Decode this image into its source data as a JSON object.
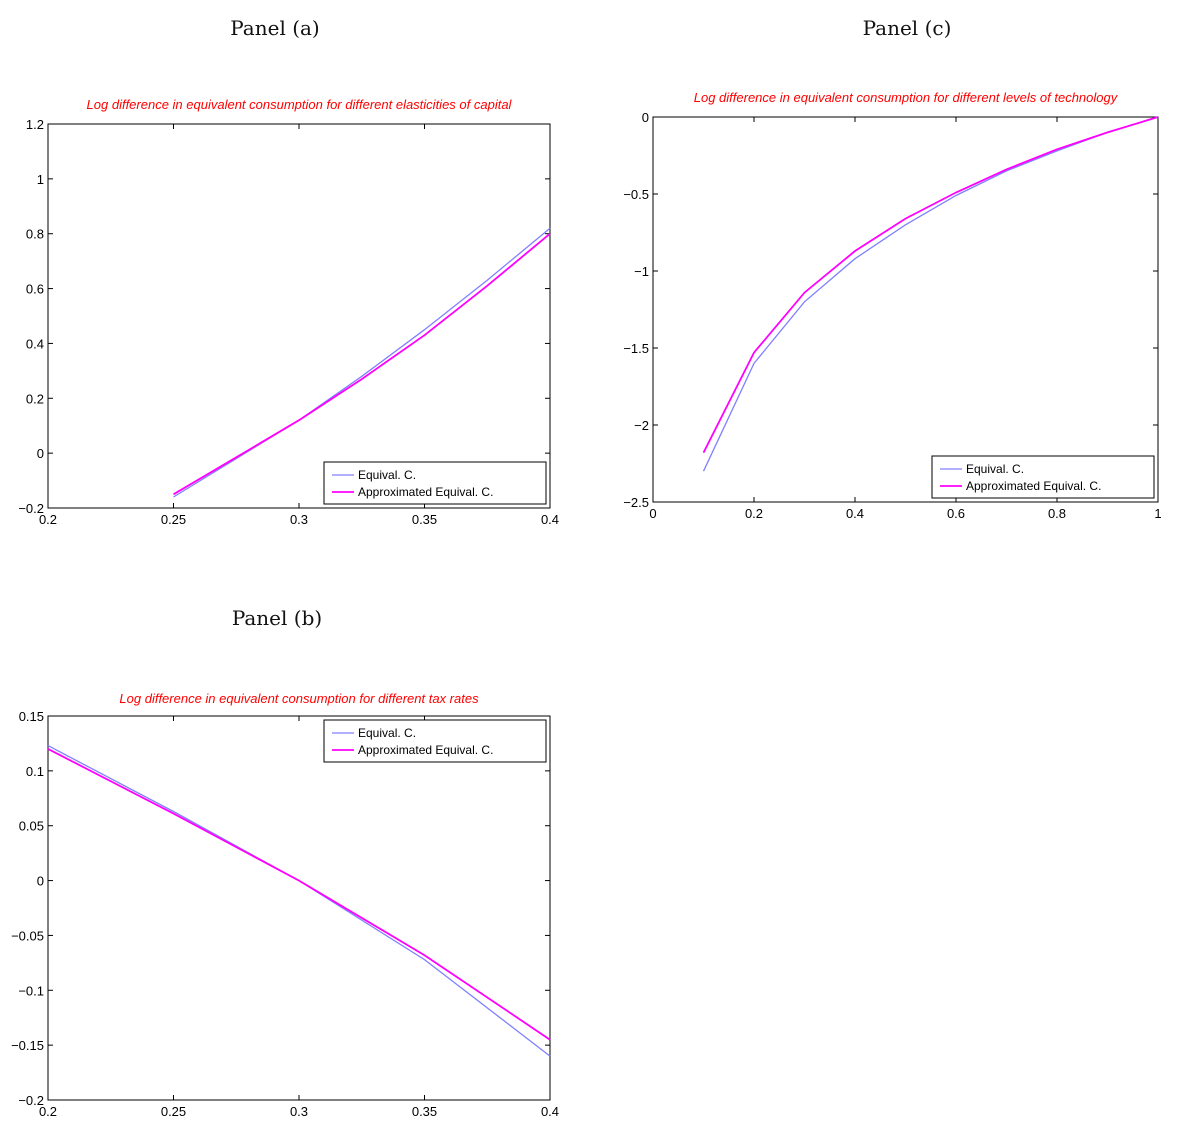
{
  "panels": {
    "a": "Panel (a)",
    "b": "Panel (b)",
    "c": "Panel (c)"
  },
  "colors": {
    "equival": "#8080ff",
    "approx": "#ff00ff",
    "title": "#ff0000"
  },
  "chart_data": [
    {
      "id": "a",
      "type": "line",
      "title": "Log difference in equivalent consumption for different elasticities of capital",
      "xlabel": "",
      "ylabel": "",
      "xlim": [
        0.2,
        0.4
      ],
      "ylim": [
        -0.2,
        1.2
      ],
      "xticks": [
        0.2,
        0.25,
        0.3,
        0.35,
        0.4
      ],
      "xtick_labels": [
        "0.2",
        "0.25",
        "0.3",
        "0.35",
        "0.4"
      ],
      "yticks": [
        -0.2,
        0,
        0.2,
        0.4,
        0.6,
        0.8,
        1,
        1.2
      ],
      "ytick_labels": [
        "-0.2",
        "0",
        "0.2",
        "0.4",
        "0.6",
        "0.8",
        "1",
        "1.2"
      ],
      "legend": "bottom-right",
      "grid": false,
      "series": [
        {
          "name": "Equival. C.",
          "color": "#8080ff",
          "x": [
            0.25,
            0.275,
            0.3,
            0.325,
            0.35,
            0.375,
            0.4
          ],
          "y": [
            -0.16,
            -0.02,
            0.12,
            0.28,
            0.45,
            0.63,
            0.82
          ]
        },
        {
          "name": "Approximated Equival. C.",
          "color": "#ff00ff",
          "x": [
            0.25,
            0.275,
            0.3,
            0.325,
            0.35,
            0.375,
            0.4
          ],
          "y": [
            -0.15,
            -0.015,
            0.12,
            0.27,
            0.43,
            0.61,
            0.8
          ]
        }
      ]
    },
    {
      "id": "b",
      "type": "line",
      "title": "Log difference in equivalent consumption for different tax rates",
      "xlabel": "",
      "ylabel": "",
      "xlim": [
        0.2,
        0.4
      ],
      "ylim": [
        -0.2,
        0.15
      ],
      "xticks": [
        0.2,
        0.25,
        0.3,
        0.35,
        0.4
      ],
      "xtick_labels": [
        "0.2",
        "0.25",
        "0.3",
        "0.35",
        "0.4"
      ],
      "yticks": [
        -0.2,
        -0.15,
        -0.1,
        -0.05,
        0,
        0.05,
        0.1,
        0.15
      ],
      "ytick_labels": [
        "-0.2",
        "-0.15",
        "-0.1",
        "-0.05",
        "0",
        "0.05",
        "0.1",
        "0.15"
      ],
      "legend": "top-right",
      "grid": false,
      "series": [
        {
          "name": "Equival. C.",
          "color": "#8080ff",
          "x": [
            0.2,
            0.25,
            0.3,
            0.35,
            0.4
          ],
          "y": [
            0.123,
            0.063,
            0.0,
            -0.072,
            -0.16
          ]
        },
        {
          "name": "Approximated Equival. C.",
          "color": "#ff00ff",
          "x": [
            0.2,
            0.25,
            0.3,
            0.35,
            0.4
          ],
          "y": [
            0.12,
            0.061,
            0.0,
            -0.068,
            -0.145
          ]
        }
      ]
    },
    {
      "id": "c",
      "type": "line",
      "title": "Log difference in equivalent consumption for different levels of technology",
      "xlabel": "",
      "ylabel": "",
      "xlim": [
        0,
        1
      ],
      "ylim": [
        -2.5,
        0
      ],
      "xticks": [
        0,
        0.2,
        0.4,
        0.6,
        0.8,
        1
      ],
      "xtick_labels": [
        "0",
        "0.2",
        "0.4",
        "0.6",
        "0.8",
        "1"
      ],
      "yticks": [
        -2.5,
        -2,
        -1.5,
        -1,
        -0.5,
        0
      ],
      "ytick_labels": [
        "-2.5",
        "-2",
        "-1.5",
        "-1",
        "-0.5",
        "0"
      ],
      "legend": "bottom-right",
      "grid": false,
      "series": [
        {
          "name": "Equival. C.",
          "color": "#8080ff",
          "x": [
            0.1,
            0.2,
            0.3,
            0.4,
            0.5,
            0.6,
            0.7,
            0.8,
            0.9,
            1.0
          ],
          "y": [
            -2.3,
            -1.6,
            -1.2,
            -0.92,
            -0.7,
            -0.51,
            -0.35,
            -0.22,
            -0.1,
            0.0
          ]
        },
        {
          "name": "Approximated Equival. C.",
          "color": "#ff00ff",
          "x": [
            0.1,
            0.2,
            0.3,
            0.4,
            0.5,
            0.6,
            0.7,
            0.8,
            0.9,
            1.0
          ],
          "y": [
            -2.18,
            -1.53,
            -1.14,
            -0.87,
            -0.66,
            -0.49,
            -0.34,
            -0.21,
            -0.1,
            0.0
          ]
        }
      ]
    }
  ]
}
